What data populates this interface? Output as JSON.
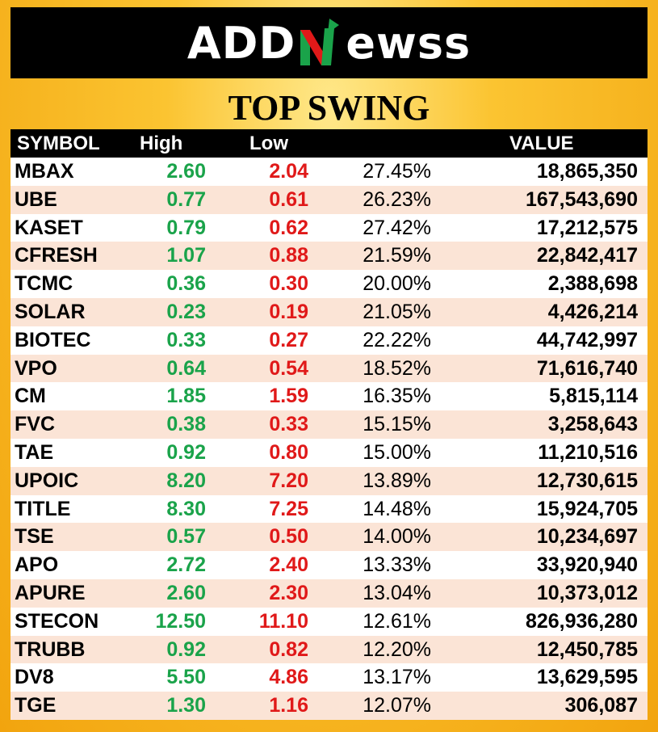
{
  "brand": {
    "logo_left": "ADD",
    "logo_right": "ewss",
    "logo_mark_icon": "n-arrow-logo-icon",
    "colors": {
      "mark_green": "#1aa34a",
      "mark_red": "#e01919",
      "header_bg": "#000000",
      "frame": "#f7b313"
    }
  },
  "title": "TOP SWING",
  "table": {
    "headers": {
      "symbol": "SYMBOL",
      "high": "High",
      "low": "Low",
      "pct": "",
      "value": "VALUE"
    },
    "rows": [
      {
        "symbol": "MBAX",
        "high": "2.60",
        "low": "2.04",
        "pct": "27.45%",
        "value": "18,865,350"
      },
      {
        "symbol": "UBE",
        "high": "0.77",
        "low": "0.61",
        "pct": "26.23%",
        "value": "167,543,690"
      },
      {
        "symbol": "KASET",
        "high": "0.79",
        "low": "0.62",
        "pct": "27.42%",
        "value": "17,212,575"
      },
      {
        "symbol": "CFRESH",
        "high": "1.07",
        "low": "0.88",
        "pct": "21.59%",
        "value": "22,842,417"
      },
      {
        "symbol": "TCMC",
        "high": "0.36",
        "low": "0.30",
        "pct": "20.00%",
        "value": "2,388,698"
      },
      {
        "symbol": "SOLAR",
        "high": "0.23",
        "low": "0.19",
        "pct": "21.05%",
        "value": "4,426,214"
      },
      {
        "symbol": "BIOTEC",
        "high": "0.33",
        "low": "0.27",
        "pct": "22.22%",
        "value": "44,742,997"
      },
      {
        "symbol": "VPO",
        "high": "0.64",
        "low": "0.54",
        "pct": "18.52%",
        "value": "71,616,740"
      },
      {
        "symbol": "CM",
        "high": "1.85",
        "low": "1.59",
        "pct": "16.35%",
        "value": "5,815,114"
      },
      {
        "symbol": "FVC",
        "high": "0.38",
        "low": "0.33",
        "pct": "15.15%",
        "value": "3,258,643"
      },
      {
        "symbol": "TAE",
        "high": "0.92",
        "low": "0.80",
        "pct": "15.00%",
        "value": "11,210,516"
      },
      {
        "symbol": "UPOIC",
        "high": "8.20",
        "low": "7.20",
        "pct": "13.89%",
        "value": "12,730,615"
      },
      {
        "symbol": "TITLE",
        "high": "8.30",
        "low": "7.25",
        "pct": "14.48%",
        "value": "15,924,705"
      },
      {
        "symbol": "TSE",
        "high": "0.57",
        "low": "0.50",
        "pct": "14.00%",
        "value": "10,234,697"
      },
      {
        "symbol": "APO",
        "high": "2.72",
        "low": "2.40",
        "pct": "13.33%",
        "value": "33,920,940"
      },
      {
        "symbol": "APURE",
        "high": "2.60",
        "low": "2.30",
        "pct": "13.04%",
        "value": "10,373,012"
      },
      {
        "symbol": "STECON",
        "high": "12.50",
        "low": "11.10",
        "pct": "12.61%",
        "value": "826,936,280"
      },
      {
        "symbol": "TRUBB",
        "high": "0.92",
        "low": "0.82",
        "pct": "12.20%",
        "value": "12,450,785"
      },
      {
        "symbol": "DV8",
        "high": "5.50",
        "low": "4.86",
        "pct": "13.17%",
        "value": "13,629,595"
      },
      {
        "symbol": "TGE",
        "high": "1.30",
        "low": "1.16",
        "pct": "12.07%",
        "value": "306,087"
      }
    ]
  }
}
